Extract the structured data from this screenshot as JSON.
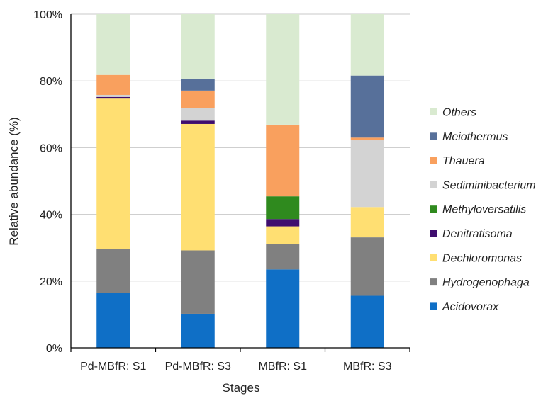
{
  "chart_data": {
    "type": "bar",
    "stacked": true,
    "percent": true,
    "xlabel": "Stages",
    "ylabel": "Relative abundance  (%)",
    "ylim": [
      0,
      100
    ],
    "yticks": [
      "0%",
      "20%",
      "40%",
      "60%",
      "80%",
      "100%"
    ],
    "grid": true,
    "legend_position": "right",
    "categories": [
      "Pd-MBfR: S1",
      "Pd-MBfR: S3",
      "MBfR: S1",
      "MBfR: S3"
    ],
    "series": [
      {
        "name": "Acidovorax",
        "color": "#0f6fc6",
        "values": [
          16.5,
          10.2,
          23.5,
          15.6
        ]
      },
      {
        "name": "Hydrogenophaga",
        "color": "#808080",
        "values": [
          13.2,
          19.0,
          7.7,
          17.5
        ]
      },
      {
        "name": "Dechloromonas",
        "color": "#ffdf72",
        "values": [
          45.0,
          37.9,
          5.2,
          9.1
        ]
      },
      {
        "name": "Denitratisoma",
        "color": "#3f0d6e",
        "values": [
          0.5,
          1.0,
          2.2,
          0.0
        ]
      },
      {
        "name": "Methyloversatilis",
        "color": "#2f8a1e",
        "values": [
          0.0,
          0.0,
          6.8,
          0.0
        ]
      },
      {
        "name": "Sediminibacterium",
        "color": "#d3d3d3",
        "values": [
          0.6,
          3.7,
          0.0,
          20.0
        ]
      },
      {
        "name": "Thauera",
        "color": "#f9a05e",
        "values": [
          6.0,
          5.3,
          21.5,
          0.8
        ]
      },
      {
        "name": "Meiothermus",
        "color": "#57709a",
        "values": [
          0.0,
          3.6,
          0.0,
          18.6
        ]
      },
      {
        "name": "Others",
        "color": "#d9ead0",
        "values": [
          18.2,
          19.3,
          33.1,
          18.4
        ]
      }
    ]
  }
}
